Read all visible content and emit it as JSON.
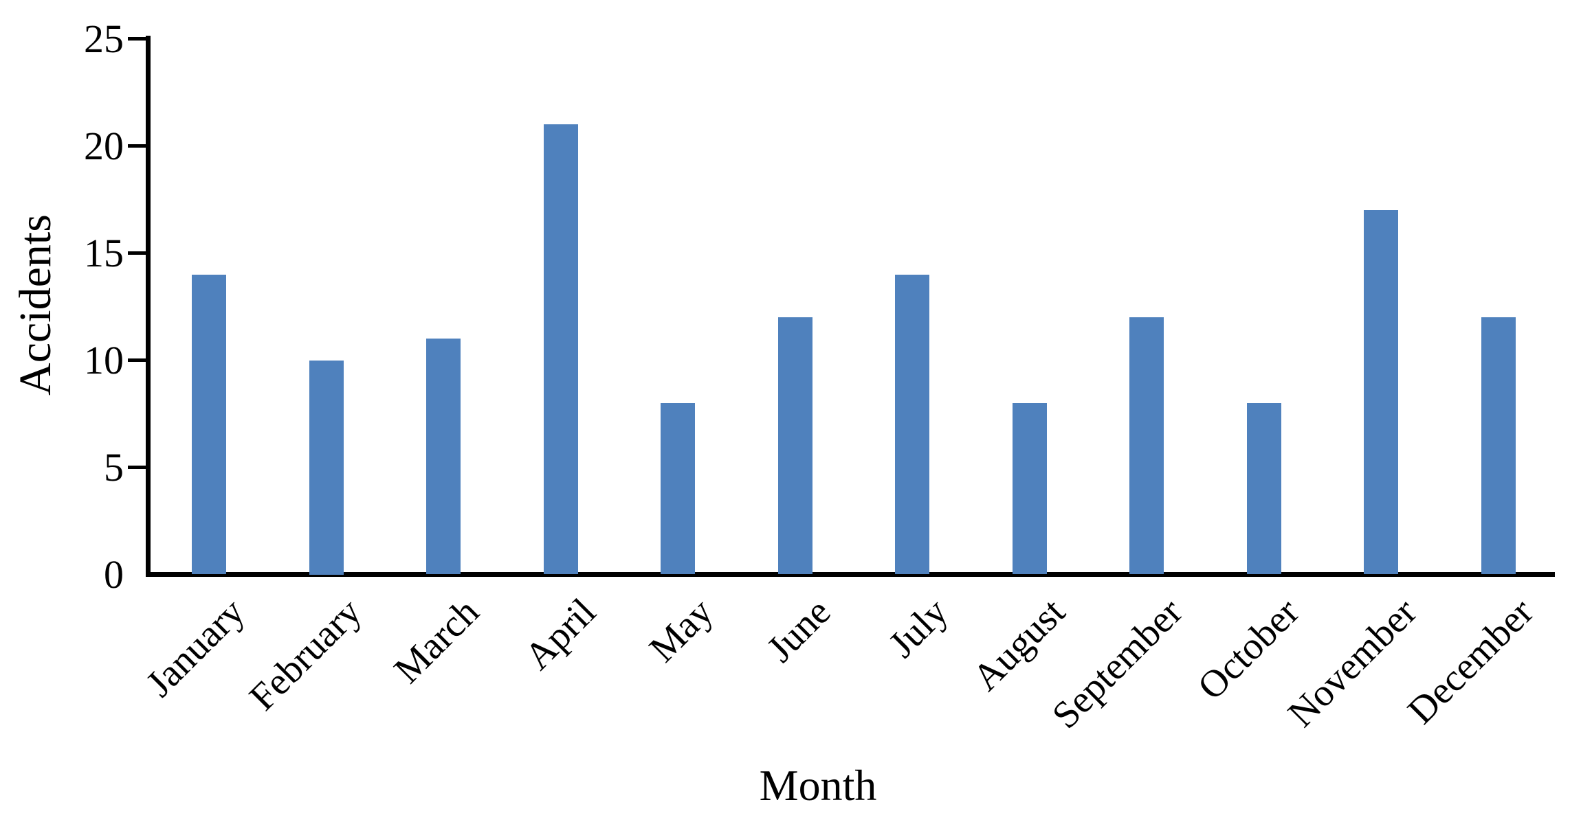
{
  "chart_data": {
    "type": "bar",
    "title": "",
    "categories": [
      "January",
      "February",
      "March",
      "April",
      "May",
      "June",
      "July",
      "August",
      "September",
      "October",
      "November",
      "December"
    ],
    "values": [
      14,
      10,
      11,
      21,
      8,
      12,
      14,
      8,
      12,
      8,
      17,
      12
    ],
    "xlabel": "Month",
    "ylabel": "Accidents",
    "ylim": [
      0,
      25
    ],
    "yticks": [
      0,
      5,
      10,
      15,
      20,
      25
    ],
    "grid": false,
    "legend": null,
    "bar_color": "#4F81BD",
    "axis_color": "#000000",
    "text_color": "#000000",
    "background_color": "#ffffff"
  }
}
